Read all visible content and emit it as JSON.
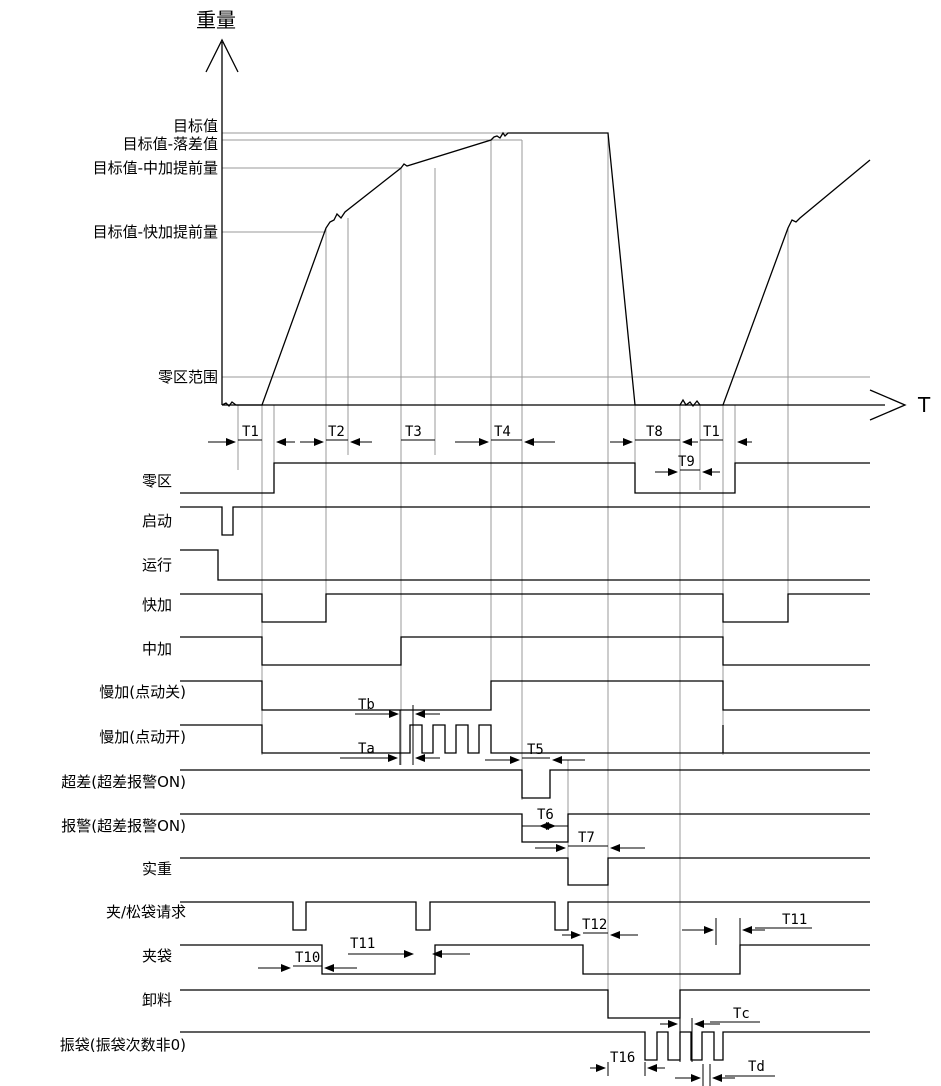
{
  "axes": {
    "y_label": "重量",
    "x_label": "T"
  },
  "levels": {
    "target": "目标值",
    "target_minus_fall": "目标值-落差值",
    "target_minus_mid_advance": "目标值-中加提前量",
    "target_minus_fast_advance": "目标值-快加提前量",
    "zero_range": "零区范围"
  },
  "signals": [
    "零区",
    "启动",
    "运行",
    "快加",
    "中加",
    "慢加(点动关)",
    "慢加(点动开)",
    "超差(超差报警ON)",
    "报警(超差报警ON)",
    "实重",
    "夹/松袋请求",
    "夹袋",
    "卸料",
    "振袋(振袋次数非0)"
  ],
  "timing": {
    "t1a": "T1",
    "t2": "T2",
    "t3": "T3",
    "t4": "T4",
    "t8": "T8",
    "t1b": "T1",
    "t9": "T9",
    "tb": "Tb",
    "ta": "Ta",
    "t5": "T5",
    "t6": "T6",
    "t7": "T7",
    "t12": "T12",
    "t11a": "T11",
    "t10": "T10",
    "t11b": "T11",
    "tc": "Tc",
    "t16": "T16",
    "td": "Td"
  }
}
